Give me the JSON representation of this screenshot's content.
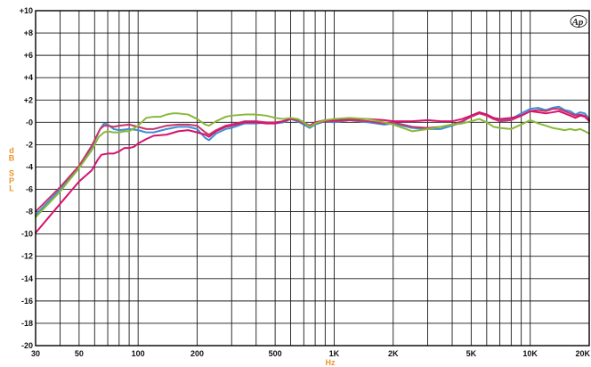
{
  "chart_data": {
    "type": "line",
    "title": "",
    "xlabel": "Hz",
    "ylabel": "dB SPL",
    "x_scale": "log",
    "xlim": [
      30,
      20000
    ],
    "ylim": [
      -20,
      10
    ],
    "grid": true,
    "x_ticks": [
      {
        "value": 30,
        "label": "30"
      },
      {
        "value": 50,
        "label": "50"
      },
      {
        "value": 100,
        "label": "100"
      },
      {
        "value": 200,
        "label": "200"
      },
      {
        "value": 500,
        "label": "500"
      },
      {
        "value": 1000,
        "label": "1K"
      },
      {
        "value": 2000,
        "label": "2K"
      },
      {
        "value": 5000,
        "label": "5K"
      },
      {
        "value": 10000,
        "label": "10K"
      },
      {
        "value": 20000,
        "label": "20K"
      }
    ],
    "y_ticks": [
      {
        "value": 10,
        "label": "+10"
      },
      {
        "value": 8,
        "label": "+8"
      },
      {
        "value": 6,
        "label": "+6"
      },
      {
        "value": 4,
        "label": "+4"
      },
      {
        "value": 2,
        "label": "+2"
      },
      {
        "value": 0,
        "label": "-0"
      },
      {
        "value": -2,
        "label": "-2"
      },
      {
        "value": -4,
        "label": "-4"
      },
      {
        "value": -6,
        "label": "-6"
      },
      {
        "value": -8,
        "label": "-8"
      },
      {
        "value": -10,
        "label": "-10"
      },
      {
        "value": -12,
        "label": "-12"
      },
      {
        "value": -14,
        "label": "-14"
      },
      {
        "value": -16,
        "label": "-16"
      },
      {
        "value": -18,
        "label": "-18"
      },
      {
        "value": -20,
        "label": "-20"
      }
    ],
    "series": [
      {
        "color": "#3d8fd6",
        "points": [
          [
            30,
            -8.3
          ],
          [
            40,
            -6.0
          ],
          [
            50,
            -4.0
          ],
          [
            58,
            -2.2
          ],
          [
            64,
            -0.6
          ],
          [
            67,
            -0.1
          ],
          [
            70,
            -0.2
          ],
          [
            75,
            -0.6
          ],
          [
            80,
            -0.7
          ],
          [
            90,
            -0.6
          ],
          [
            100,
            -0.7
          ],
          [
            110,
            -0.9
          ],
          [
            120,
            -0.9
          ],
          [
            140,
            -0.6
          ],
          [
            160,
            -0.4
          ],
          [
            180,
            -0.4
          ],
          [
            200,
            -0.6
          ],
          [
            220,
            -1.4
          ],
          [
            230,
            -1.6
          ],
          [
            250,
            -1.0
          ],
          [
            280,
            -0.6
          ],
          [
            300,
            -0.5
          ],
          [
            350,
            -0.1
          ],
          [
            400,
            -0.1
          ],
          [
            450,
            0.0
          ],
          [
            500,
            -0.1
          ],
          [
            550,
            0.0
          ],
          [
            600,
            0.3
          ],
          [
            650,
            0.1
          ],
          [
            700,
            -0.2
          ],
          [
            750,
            -0.5
          ],
          [
            800,
            -0.2
          ],
          [
            900,
            0.1
          ],
          [
            1000,
            0.0
          ],
          [
            1200,
            0.2
          ],
          [
            1500,
            0.0
          ],
          [
            1800,
            -0.2
          ],
          [
            2000,
            -0.1
          ],
          [
            2500,
            -0.5
          ],
          [
            3000,
            -0.6
          ],
          [
            3500,
            -0.6
          ],
          [
            4000,
            -0.3
          ],
          [
            4500,
            0.0
          ],
          [
            5000,
            0.6
          ],
          [
            5500,
            0.9
          ],
          [
            6000,
            0.7
          ],
          [
            6500,
            0.3
          ],
          [
            7000,
            0.2
          ],
          [
            8000,
            0.3
          ],
          [
            9000,
            0.8
          ],
          [
            10000,
            1.2
          ],
          [
            11000,
            1.3
          ],
          [
            12000,
            1.1
          ],
          [
            13000,
            1.3
          ],
          [
            14000,
            1.4
          ],
          [
            15000,
            1.1
          ],
          [
            16000,
            1.0
          ],
          [
            17000,
            0.7
          ],
          [
            18000,
            0.9
          ],
          [
            19000,
            0.8
          ],
          [
            20000,
            0.3
          ]
        ]
      },
      {
        "color": "#c8346a",
        "points": [
          [
            30,
            -8.0
          ],
          [
            40,
            -5.8
          ],
          [
            50,
            -3.9
          ],
          [
            58,
            -2.1
          ],
          [
            64,
            -0.6
          ],
          [
            67,
            -0.3
          ],
          [
            70,
            -0.3
          ],
          [
            75,
            -0.4
          ],
          [
            80,
            -0.3
          ],
          [
            90,
            -0.2
          ],
          [
            100,
            -0.4
          ],
          [
            110,
            -0.6
          ],
          [
            120,
            -0.6
          ],
          [
            140,
            -0.3
          ],
          [
            160,
            -0.2
          ],
          [
            180,
            -0.2
          ],
          [
            200,
            -0.3
          ],
          [
            220,
            -0.9
          ],
          [
            230,
            -1.1
          ],
          [
            250,
            -0.7
          ],
          [
            280,
            -0.3
          ],
          [
            300,
            -0.2
          ],
          [
            350,
            0.1
          ],
          [
            400,
            0.1
          ],
          [
            450,
            0.0
          ],
          [
            500,
            0.0
          ],
          [
            550,
            0.1
          ],
          [
            600,
            0.3
          ],
          [
            650,
            0.2
          ],
          [
            700,
            -0.1
          ],
          [
            750,
            -0.3
          ],
          [
            800,
            -0.1
          ],
          [
            900,
            0.1
          ],
          [
            1000,
            0.1
          ],
          [
            1200,
            0.2
          ],
          [
            1500,
            0.1
          ],
          [
            1800,
            -0.1
          ],
          [
            2000,
            0.0
          ],
          [
            2500,
            -0.4
          ],
          [
            3000,
            -0.5
          ],
          [
            3500,
            -0.4
          ],
          [
            4000,
            -0.2
          ],
          [
            4500,
            0.1
          ],
          [
            5000,
            0.5
          ],
          [
            5500,
            0.8
          ],
          [
            6000,
            0.6
          ],
          [
            6500,
            0.3
          ],
          [
            7000,
            0.1
          ],
          [
            8000,
            0.2
          ],
          [
            9000,
            0.6
          ],
          [
            10000,
            1.0
          ],
          [
            11000,
            1.1
          ],
          [
            12000,
            1.0
          ],
          [
            13000,
            1.2
          ],
          [
            14000,
            1.2
          ],
          [
            15000,
            1.0
          ],
          [
            16000,
            0.8
          ],
          [
            17000,
            0.6
          ],
          [
            18000,
            0.7
          ],
          [
            19000,
            0.6
          ],
          [
            20000,
            0.2
          ]
        ]
      },
      {
        "color": "#d6136e",
        "points": [
          [
            30,
            -9.9
          ],
          [
            40,
            -7.3
          ],
          [
            50,
            -5.3
          ],
          [
            58,
            -4.3
          ],
          [
            62,
            -3.4
          ],
          [
            65,
            -2.9
          ],
          [
            70,
            -2.8
          ],
          [
            75,
            -2.8
          ],
          [
            80,
            -2.6
          ],
          [
            85,
            -2.3
          ],
          [
            90,
            -2.3
          ],
          [
            95,
            -2.2
          ],
          [
            100,
            -1.9
          ],
          [
            110,
            -1.5
          ],
          [
            120,
            -1.2
          ],
          [
            140,
            -1.1
          ],
          [
            160,
            -0.8
          ],
          [
            180,
            -0.7
          ],
          [
            200,
            -0.9
          ],
          [
            220,
            -1.1
          ],
          [
            230,
            -1.3
          ],
          [
            250,
            -0.8
          ],
          [
            280,
            -0.4
          ],
          [
            300,
            -0.3
          ],
          [
            350,
            0.0
          ],
          [
            400,
            0.0
          ],
          [
            450,
            -0.1
          ],
          [
            500,
            -0.1
          ],
          [
            550,
            0.1
          ],
          [
            600,
            0.3
          ],
          [
            650,
            0.3
          ],
          [
            700,
            0.0
          ],
          [
            750,
            -0.3
          ],
          [
            800,
            0.0
          ],
          [
            900,
            0.2
          ],
          [
            1000,
            0.2
          ],
          [
            1200,
            0.3
          ],
          [
            1500,
            0.3
          ],
          [
            1800,
            0.2
          ],
          [
            2000,
            0.1
          ],
          [
            2500,
            0.1
          ],
          [
            3000,
            0.2
          ],
          [
            3500,
            0.1
          ],
          [
            4000,
            0.1
          ],
          [
            4500,
            0.3
          ],
          [
            5000,
            0.6
          ],
          [
            5500,
            0.9
          ],
          [
            6000,
            0.7
          ],
          [
            6500,
            0.4
          ],
          [
            7000,
            0.3
          ],
          [
            8000,
            0.4
          ],
          [
            9000,
            0.6
          ],
          [
            10000,
            1.0
          ],
          [
            11000,
            0.9
          ],
          [
            12000,
            0.8
          ],
          [
            13000,
            0.9
          ],
          [
            14000,
            1.0
          ],
          [
            15000,
            0.8
          ],
          [
            16000,
            0.6
          ],
          [
            17000,
            0.4
          ],
          [
            18000,
            0.6
          ],
          [
            19000,
            0.5
          ],
          [
            20000,
            0.1
          ]
        ]
      },
      {
        "color": "#8ab83a",
        "points": [
          [
            30,
            -8.5
          ],
          [
            40,
            -6.2
          ],
          [
            50,
            -4.1
          ],
          [
            58,
            -2.5
          ],
          [
            63,
            -1.3
          ],
          [
            67,
            -0.9
          ],
          [
            70,
            -0.8
          ],
          [
            75,
            -0.9
          ],
          [
            80,
            -0.9
          ],
          [
            85,
            -0.8
          ],
          [
            90,
            -0.8
          ],
          [
            100,
            -0.3
          ],
          [
            110,
            0.4
          ],
          [
            120,
            0.5
          ],
          [
            130,
            0.5
          ],
          [
            140,
            0.7
          ],
          [
            150,
            0.8
          ],
          [
            160,
            0.8
          ],
          [
            180,
            0.7
          ],
          [
            200,
            0.3
          ],
          [
            220,
            -0.2
          ],
          [
            230,
            -0.3
          ],
          [
            250,
            0.1
          ],
          [
            280,
            0.5
          ],
          [
            300,
            0.6
          ],
          [
            350,
            0.7
          ],
          [
            400,
            0.7
          ],
          [
            450,
            0.6
          ],
          [
            500,
            0.4
          ],
          [
            550,
            0.3
          ],
          [
            600,
            0.4
          ],
          [
            650,
            0.3
          ],
          [
            700,
            0.0
          ],
          [
            750,
            -0.4
          ],
          [
            800,
            -0.1
          ],
          [
            900,
            0.2
          ],
          [
            1000,
            0.3
          ],
          [
            1200,
            0.4
          ],
          [
            1500,
            0.3
          ],
          [
            1800,
            0.0
          ],
          [
            2000,
            -0.2
          ],
          [
            2500,
            -0.8
          ],
          [
            3000,
            -0.6
          ],
          [
            3500,
            -0.4
          ],
          [
            4000,
            -0.2
          ],
          [
            4500,
            -0.1
          ],
          [
            5000,
            0.1
          ],
          [
            5500,
            0.3
          ],
          [
            6000,
            0.0
          ],
          [
            6500,
            -0.4
          ],
          [
            7000,
            -0.5
          ],
          [
            8000,
            -0.6
          ],
          [
            9000,
            -0.2
          ],
          [
            10000,
            0.2
          ],
          [
            11000,
            -0.1
          ],
          [
            12000,
            -0.3
          ],
          [
            13000,
            -0.5
          ],
          [
            14000,
            -0.6
          ],
          [
            15000,
            -0.7
          ],
          [
            16000,
            -0.6
          ],
          [
            17000,
            -0.7
          ],
          [
            18000,
            -0.6
          ],
          [
            19000,
            -0.8
          ],
          [
            20000,
            -1.0
          ]
        ]
      }
    ]
  },
  "logo": {
    "text": "Ap"
  }
}
